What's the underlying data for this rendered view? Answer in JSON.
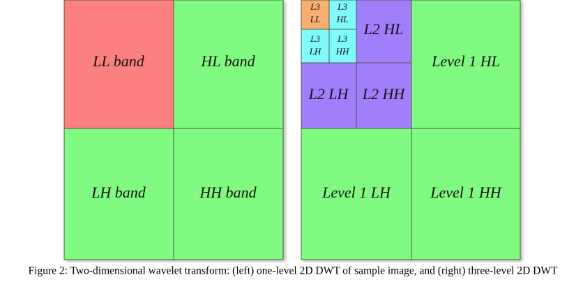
{
  "left_panel": {
    "cells": [
      "LL band",
      "HL band",
      "LH band",
      "HH band"
    ]
  },
  "right_panel": {
    "level3": [
      [
        "L3",
        "LL"
      ],
      [
        "L3",
        "HL"
      ],
      [
        "L3",
        "LH"
      ],
      [
        "L3",
        "HH"
      ]
    ],
    "level2": [
      "L2 HL",
      "L2 LH",
      "L2 HH"
    ],
    "level1": [
      "Level 1 HL",
      "Level 1 LH",
      "Level 1 HH"
    ]
  },
  "caption": "Figure 2: Two-dimensional wavelet transform: (left) one-level 2D DWT of sample image, and (right) three-level 2D DWT"
}
